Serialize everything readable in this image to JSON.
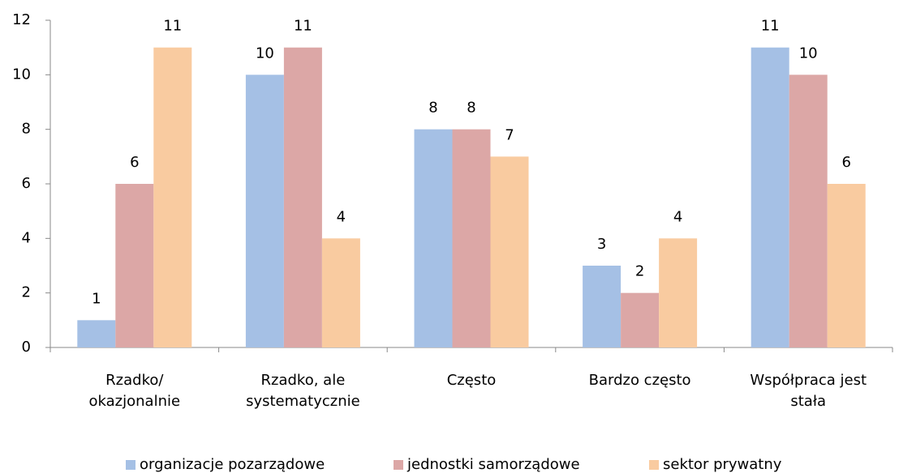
{
  "chart_data": {
    "type": "bar",
    "categories": [
      "Rzadko/\nokazjonalnie",
      "Rzadko, ale\nsystematycznie",
      "Często",
      "Bardzo często",
      "Współpraca jest\nstała"
    ],
    "series": [
      {
        "name": "organizacje pozarządowe",
        "color": "#a5c0e5",
        "values": [
          1,
          10,
          8,
          3,
          11
        ]
      },
      {
        "name": "jednostki samorządowe",
        "color": "#dca7a6",
        "values": [
          6,
          11,
          8,
          2,
          10
        ]
      },
      {
        "name": "sektor prywatny",
        "color": "#f9cba0",
        "values": [
          11,
          4,
          7,
          4,
          6
        ]
      }
    ],
    "ylim": [
      0,
      12
    ],
    "yticks": [
      0,
      2,
      4,
      6,
      8,
      10,
      12
    ],
    "legend": "bottom"
  }
}
